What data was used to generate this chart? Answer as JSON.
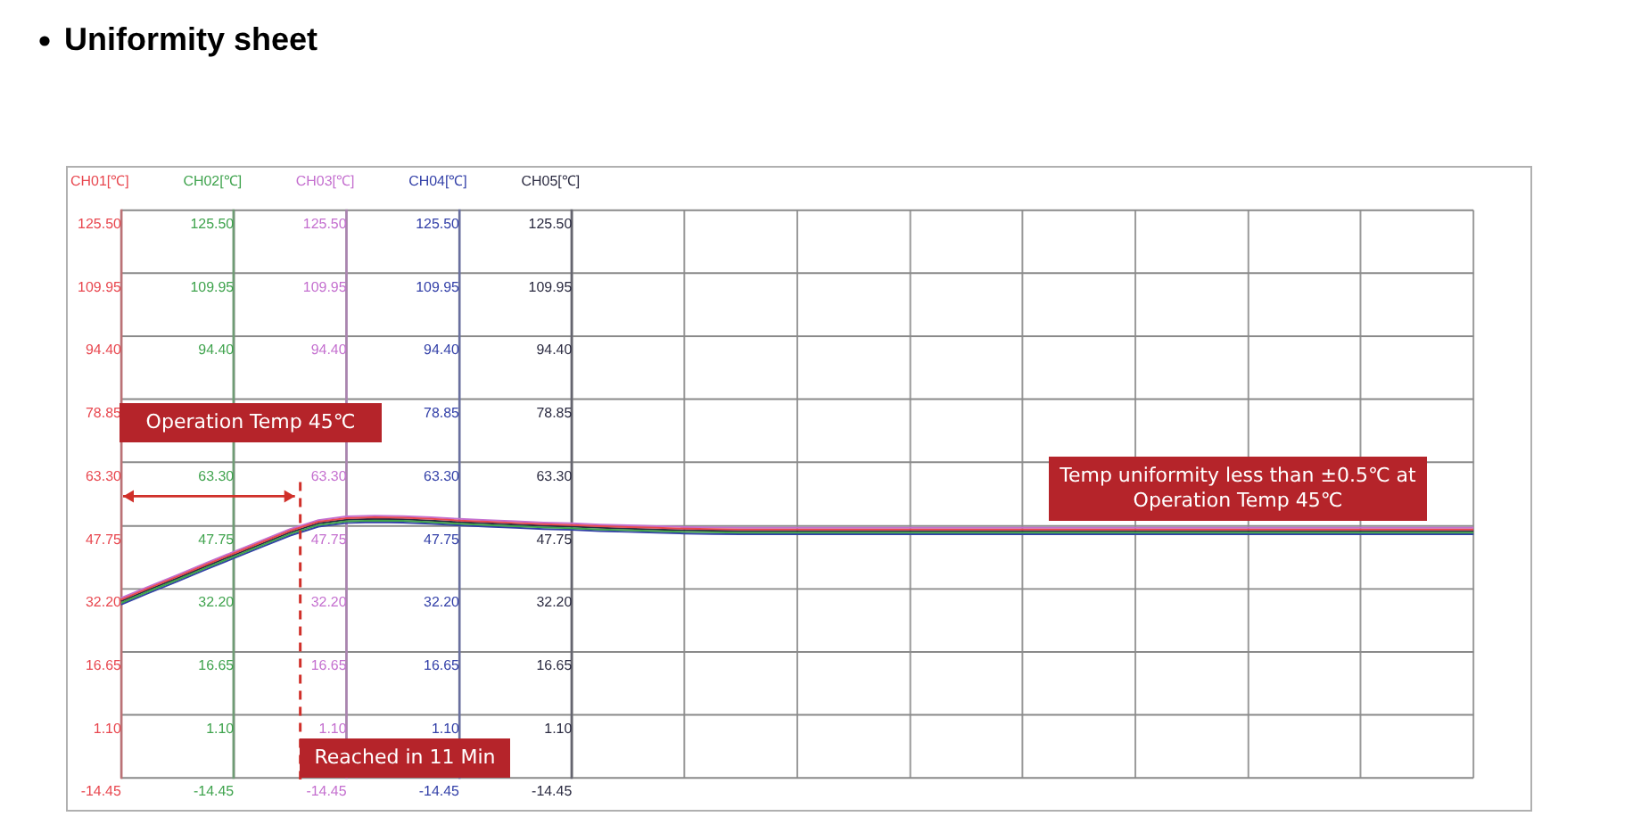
{
  "chart_data": {
    "type": "line",
    "title": "Uniformity sheet",
    "categories": [
      null,
      null,
      null,
      null,
      null,
      null,
      null,
      null,
      null,
      null,
      null,
      null,
      null,
      null,
      null,
      null,
      null,
      null,
      null,
      null,
      null,
      null,
      null,
      null,
      null,
      null,
      null,
      null,
      null,
      null,
      null,
      null,
      null,
      null,
      null,
      null,
      null,
      null,
      null,
      null,
      null,
      null,
      null,
      null,
      null,
      null,
      null,
      null,
      null
    ],
    "series": [
      {
        "name": "CH01[℃]",
        "color": "#e8474f",
        "values": [
          29.5,
          32.4,
          35.2,
          38.1,
          40.9,
          43.7,
          46.5,
          48.7,
          49.6,
          49.8,
          49.7,
          49.4,
          49.0,
          48.7,
          48.4,
          48.1,
          47.9,
          47.6,
          47.4,
          47.2,
          47.0,
          46.9,
          46.8,
          46.8,
          46.8,
          46.8,
          46.8,
          46.8,
          46.8,
          46.8,
          46.8,
          46.8,
          46.8,
          46.8,
          46.8,
          46.8,
          46.8,
          46.8,
          46.8,
          46.8,
          46.8,
          46.8,
          46.8,
          46.8,
          46.8,
          46.8,
          46.8,
          46.8,
          46.8
        ]
      },
      {
        "name": "CH02[℃]",
        "color": "#3fa34d",
        "values": [
          28.7,
          31.6,
          34.4,
          37.3,
          40.1,
          42.9,
          45.7,
          47.9,
          48.8,
          49.0,
          48.9,
          48.6,
          48.2,
          47.9,
          47.6,
          47.3,
          47.1,
          46.8,
          46.6,
          46.4,
          46.2,
          46.1,
          46.0,
          46.0,
          46.0,
          46.0,
          46.0,
          46.0,
          46.0,
          46.0,
          46.0,
          46.0,
          46.0,
          46.0,
          46.0,
          46.0,
          46.0,
          46.0,
          46.0,
          46.0,
          46.0,
          46.0,
          46.0,
          46.0,
          46.0,
          46.0,
          46.0,
          46.0,
          46.0
        ]
      },
      {
        "name": "CH03[℃]",
        "color": "#c46fcf",
        "values": [
          29.9,
          32.8,
          35.6,
          38.5,
          41.3,
          44.1,
          46.9,
          49.1,
          50.0,
          50.2,
          50.1,
          49.8,
          49.4,
          49.1,
          48.8,
          48.5,
          48.3,
          48.0,
          47.8,
          47.6,
          47.4,
          47.3,
          47.2,
          47.2,
          47.2,
          47.2,
          47.2,
          47.2,
          47.2,
          47.2,
          47.2,
          47.2,
          47.2,
          47.2,
          47.2,
          47.2,
          47.2,
          47.2,
          47.2,
          47.2,
          47.2,
          47.2,
          47.2,
          47.2,
          47.2,
          47.2,
          47.2,
          47.2,
          47.2
        ]
      },
      {
        "name": "CH04[℃]",
        "color": "#3340a8",
        "values": [
          28.3,
          31.2,
          34.0,
          36.9,
          39.7,
          42.5,
          45.3,
          47.5,
          48.4,
          48.6,
          48.5,
          48.2,
          47.8,
          47.5,
          47.2,
          46.9,
          46.7,
          46.4,
          46.2,
          46.0,
          45.8,
          45.7,
          45.6,
          45.6,
          45.6,
          45.6,
          45.6,
          45.6,
          45.6,
          45.6,
          45.6,
          45.6,
          45.6,
          45.6,
          45.6,
          45.6,
          45.6,
          45.6,
          45.6,
          45.6,
          45.6,
          45.6,
          45.6,
          45.6,
          45.6,
          45.6,
          45.6,
          45.6,
          45.6
        ]
      },
      {
        "name": "CH05[℃]",
        "color": "#2a2a40",
        "values": [
          29.1,
          32.0,
          34.8,
          37.7,
          40.5,
          43.3,
          46.1,
          48.3,
          49.2,
          49.4,
          49.3,
          49.0,
          48.6,
          48.3,
          48.0,
          47.7,
          47.5,
          47.2,
          47.0,
          46.8,
          46.6,
          46.5,
          46.4,
          46.4,
          46.4,
          46.4,
          46.4,
          46.4,
          46.4,
          46.4,
          46.4,
          46.4,
          46.4,
          46.4,
          46.4,
          46.4,
          46.4,
          46.4,
          46.4,
          46.4,
          46.4,
          46.4,
          46.4,
          46.4,
          46.4,
          46.4,
          46.4,
          46.4,
          46.4
        ]
      }
    ],
    "ylim": [
      -14.45,
      125.5
    ],
    "yticks": [
      {
        "value": -14.45,
        "label": "-14.45"
      },
      {
        "value": 1.1,
        "label": "1.10"
      },
      {
        "value": 16.65,
        "label": "16.65"
      },
      {
        "value": 32.2,
        "label": "32.20"
      },
      {
        "value": 47.75,
        "label": "47.75"
      },
      {
        "value": 63.3,
        "label": "63.30"
      },
      {
        "value": 78.85,
        "label": "78.85"
      },
      {
        "value": 94.4,
        "label": "94.40"
      },
      {
        "value": 109.95,
        "label": "109.95"
      },
      {
        "value": 125.5,
        "label": "125.50"
      }
    ],
    "annotations": [
      "Operation Temp 45℃",
      "Reached in 11 Min",
      "Temp uniformity less than ±0.5℃ at Operation Temp 45℃"
    ],
    "grid": true,
    "legend": false,
    "marker": "none",
    "line_style": "solid",
    "tick_labels": "y"
  }
}
